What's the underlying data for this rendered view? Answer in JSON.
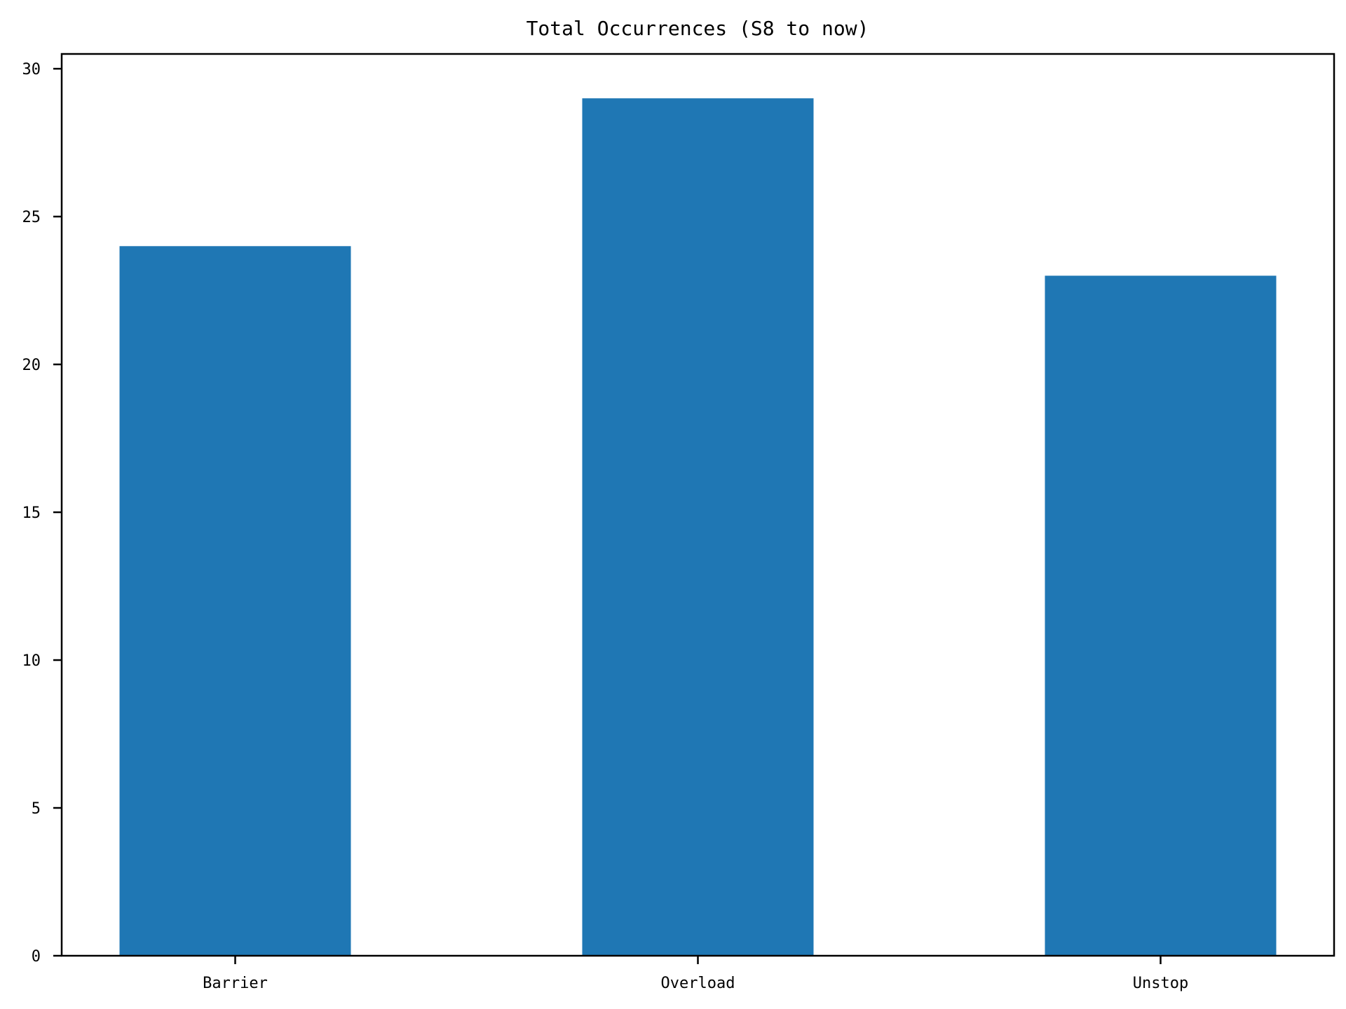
{
  "chart_data": {
    "type": "bar",
    "title": "Total Occurrences (S8 to now)",
    "xlabel": "",
    "ylabel": "",
    "categories": [
      "Barrier",
      "Overload",
      "Unstop"
    ],
    "values": [
      24,
      29,
      23
    ],
    "ylim": [
      0,
      30.5
    ],
    "yticks": [
      0,
      5,
      10,
      15,
      20,
      25,
      30
    ],
    "bar_color": "#1f77b4",
    "grid": false,
    "legend": "none"
  }
}
